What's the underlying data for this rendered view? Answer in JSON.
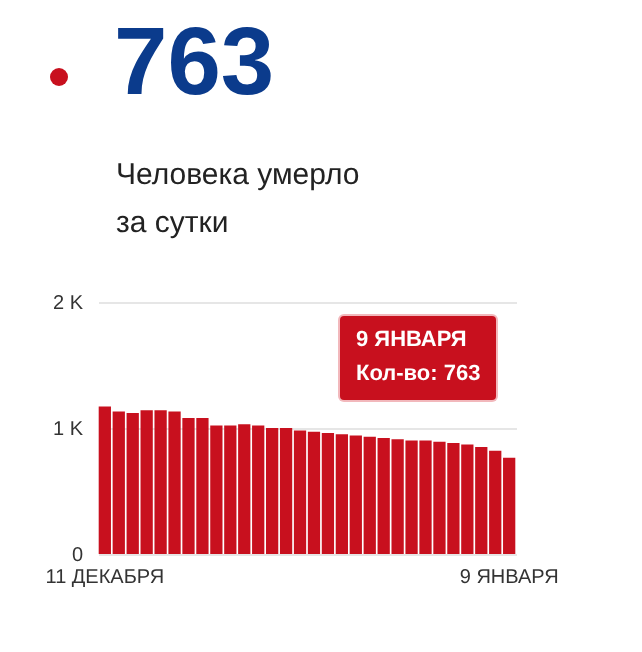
{
  "chart_data": {
    "type": "bar",
    "title": "763",
    "subtitle": "Человека умерло за сутки",
    "categories": [
      "11 ДЕКАБРЯ",
      null,
      null,
      null,
      null,
      null,
      null,
      null,
      null,
      null,
      null,
      null,
      null,
      null,
      null,
      null,
      null,
      null,
      null,
      null,
      null,
      null,
      null,
      null,
      null,
      null,
      null,
      null,
      null,
      "9 ЯНВАРЯ"
    ],
    "values": [
      1170,
      1130,
      1120,
      1140,
      1140,
      1130,
      1080,
      1080,
      1020,
      1020,
      1030,
      1020,
      1000,
      1000,
      980,
      970,
      960,
      950,
      940,
      930,
      920,
      910,
      900,
      900,
      890,
      880,
      870,
      850,
      820,
      763
    ],
    "color": "#c8101e",
    "ylim": [
      0,
      2000
    ],
    "yticks": [
      {
        "value": 0,
        "label": "0"
      },
      {
        "value": 1000,
        "label": "1 K"
      },
      {
        "value": 2000,
        "label": "2 K"
      }
    ],
    "grid": "y",
    "annotations": [
      "9 ЯНВАРЯ",
      "Кол-во: 763"
    ]
  }
}
